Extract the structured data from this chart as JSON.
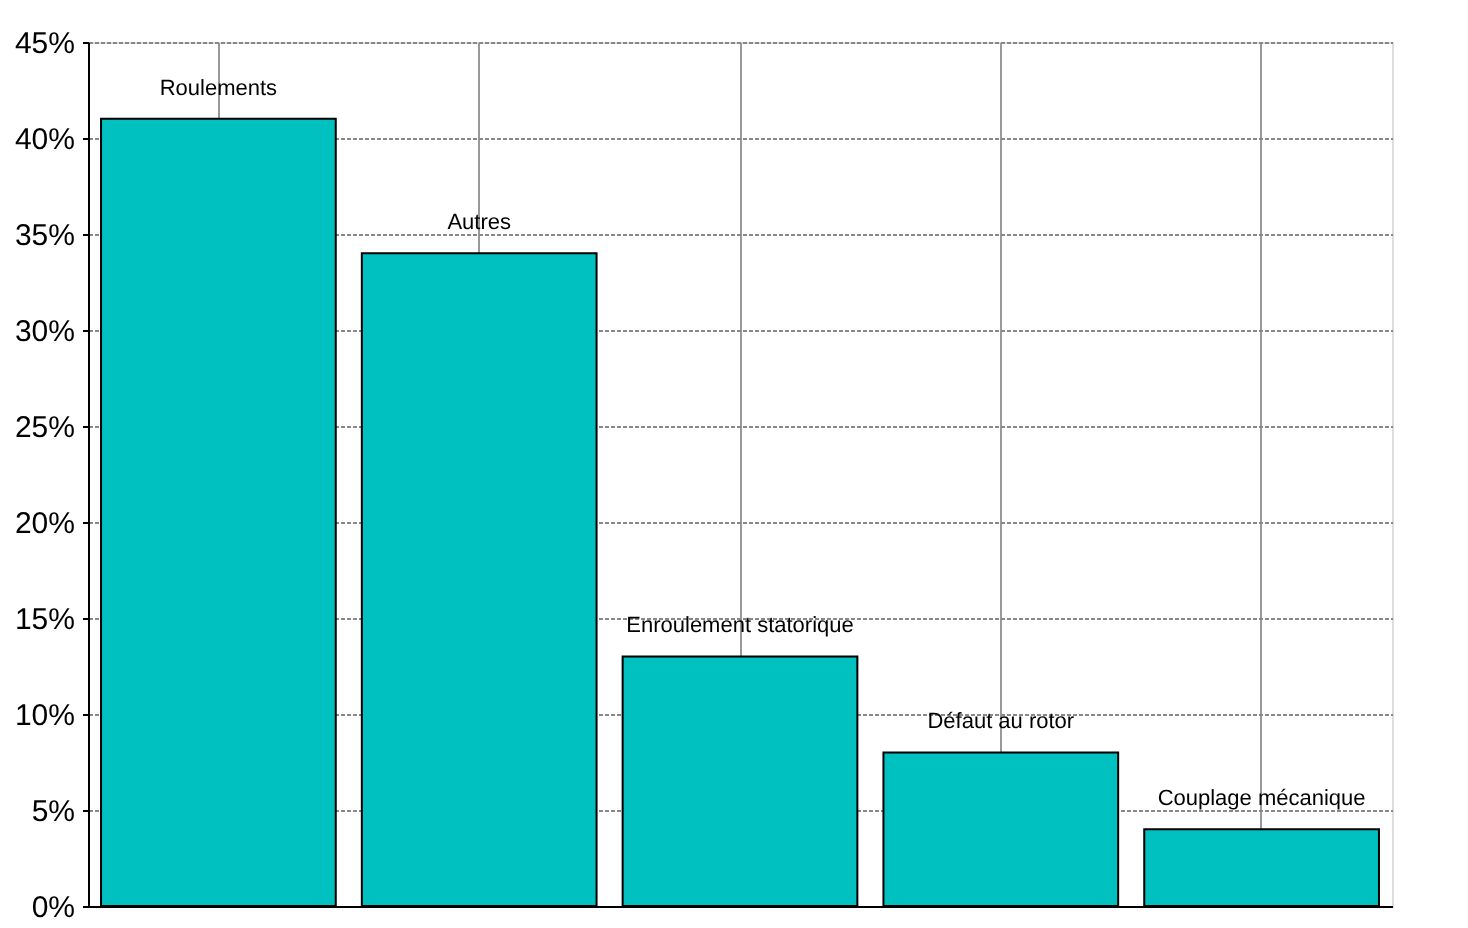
{
  "chart_data": {
    "type": "bar",
    "categories": [
      "Roulements",
      "Autres",
      "Enroulement statorique",
      "Défaut au rotor",
      "Couplage mécanique"
    ],
    "values": [
      41,
      34,
      13,
      8,
      4
    ],
    "color": "#00c0c0",
    "ylim": [
      0,
      45
    ],
    "yticks": [
      {
        "value": 0,
        "label": "0%"
      },
      {
        "value": 5,
        "label": "5%"
      },
      {
        "value": 10,
        "label": "10%"
      },
      {
        "value": 15,
        "label": "15%"
      },
      {
        "value": 20,
        "label": "20%"
      },
      {
        "value": 25,
        "label": "25%"
      },
      {
        "value": 30,
        "label": "30%"
      },
      {
        "value": 35,
        "label": "35%"
      },
      {
        "value": 40,
        "label": "40%"
      },
      {
        "value": 45,
        "label": "45%"
      }
    ],
    "grid": true,
    "tick_labels": "y"
  }
}
